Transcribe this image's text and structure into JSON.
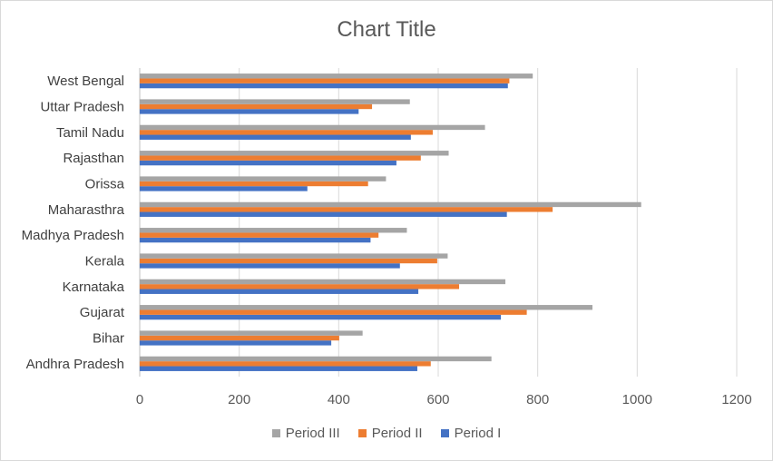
{
  "chart_data": {
    "type": "bar",
    "orientation": "horizontal",
    "title": "Chart Title",
    "categories": [
      "Andhra Pradesh",
      "Bihar",
      "Gujarat",
      "Karnataka",
      "Kerala",
      "Madhya Pradesh",
      "Maharasthra",
      "Orissa",
      "Rajasthan",
      "Tamil Nadu",
      "Uttar Pradesh",
      "West Bengal"
    ],
    "series": [
      {
        "name": "Period I",
        "color": "#4472c4",
        "values": [
          558,
          385,
          726,
          560,
          523,
          464,
          738,
          337,
          516,
          545,
          440,
          740
        ]
      },
      {
        "name": "Period II",
        "color": "#ed7d31",
        "values": [
          585,
          401,
          778,
          642,
          598,
          480,
          830,
          459,
          565,
          589,
          467,
          743
        ]
      },
      {
        "name": "Period III",
        "color": "#a5a5a5",
        "values": [
          707,
          448,
          910,
          735,
          619,
          537,
          1008,
          495,
          621,
          694,
          543,
          790
        ]
      }
    ],
    "xlim": [
      0,
      1200
    ],
    "xticks": [
      "0",
      "200",
      "400",
      "600",
      "800",
      "1000",
      "1200"
    ],
    "grid": true,
    "legend_position": "bottom",
    "legend_order": [
      "Period III",
      "Period II",
      "Period I"
    ]
  }
}
